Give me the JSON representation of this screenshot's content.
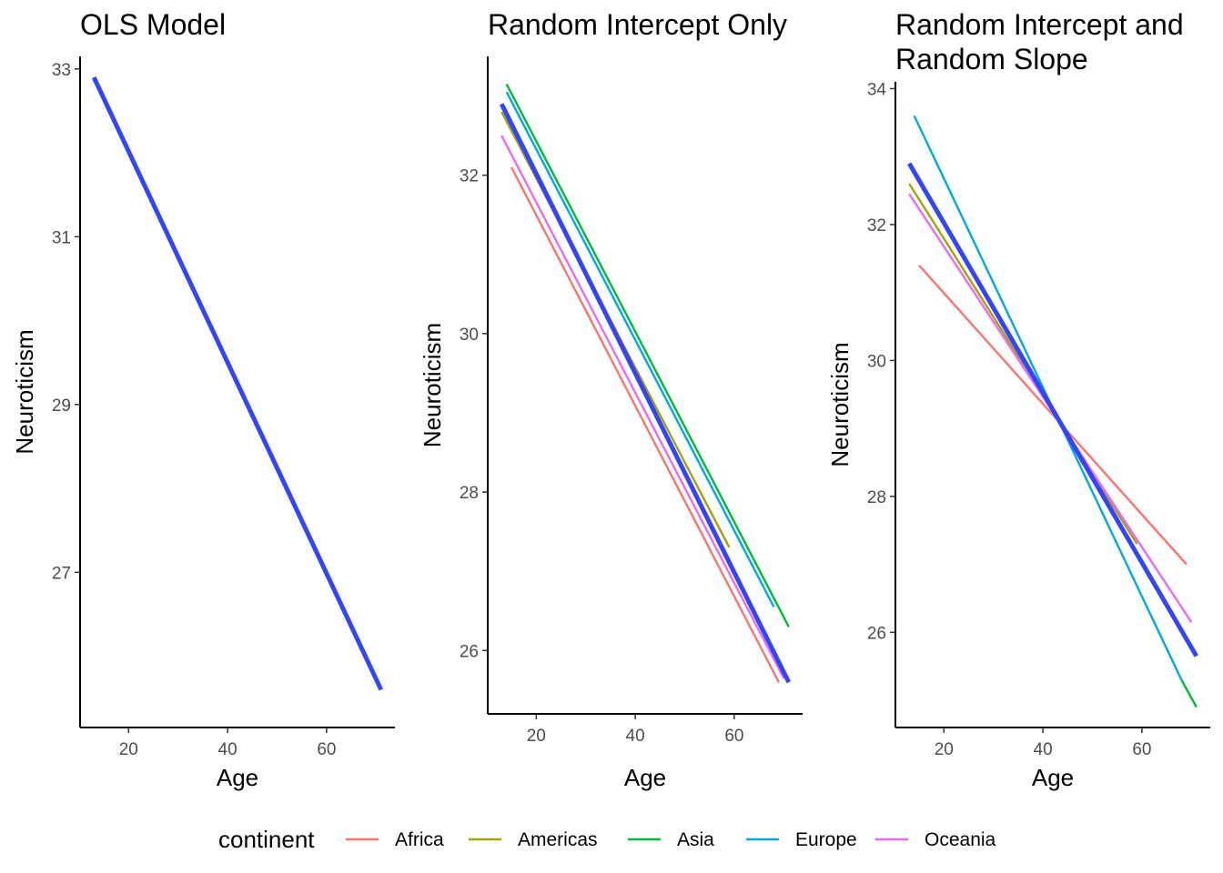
{
  "chart_data": [
    {
      "type": "line",
      "title": "OLS Model",
      "xlabel": "Age",
      "ylabel": "Neuroticism",
      "xlim": [
        10.2,
        73.8
      ],
      "ylim": [
        25.15,
        33.15
      ],
      "xticks": [
        20,
        40,
        60
      ],
      "yticks": [
        27,
        29,
        31,
        33
      ],
      "series": [
        {
          "role": "overall",
          "color": "#3344ff",
          "x": [
            13,
            71
          ],
          "y": [
            32.9,
            25.6
          ]
        }
      ]
    },
    {
      "type": "line",
      "title": "Random Intercept Only",
      "xlabel": "Age",
      "ylabel": "Neuroticism",
      "xlim": [
        10.2,
        73.8
      ],
      "ylim": [
        25.2,
        33.5
      ],
      "xticks": [
        20,
        40,
        60
      ],
      "yticks": [
        26,
        28,
        30,
        32
      ],
      "series": [
        {
          "name": "Asia",
          "color": "#00ba38",
          "x": [
            14,
            71
          ],
          "y": [
            33.15,
            26.3
          ]
        },
        {
          "name": "Europe",
          "color": "#00a9e0",
          "x": [
            14,
            68
          ],
          "y": [
            33.05,
            26.55
          ]
        },
        {
          "name": "Americas",
          "color": "#a3a500",
          "x": [
            13,
            59
          ],
          "y": [
            32.8,
            27.3
          ]
        },
        {
          "name": "Oceania",
          "color": "#e76bf3",
          "x": [
            13,
            70
          ],
          "y": [
            32.5,
            25.65
          ]
        },
        {
          "name": "Africa",
          "color": "#f8766d",
          "x": [
            15,
            69
          ],
          "y": [
            32.1,
            25.6
          ]
        },
        {
          "role": "overall",
          "color": "#3344ff",
          "x": [
            13,
            71
          ],
          "y": [
            32.9,
            25.6
          ]
        }
      ]
    },
    {
      "type": "line",
      "title": "Random Intercept and Random Slope",
      "title_lines": [
        "Random Intercept and",
        "Random Slope"
      ],
      "xlabel": "Age",
      "ylabel": "Neuroticism",
      "xlim": [
        10.2,
        73.8
      ],
      "ylim": [
        24.6,
        34.1
      ],
      "xticks": [
        20,
        40,
        60
      ],
      "yticks": [
        26,
        28,
        30,
        32,
        34
      ],
      "series": [
        {
          "name": "Europe",
          "color": "#00a9e0",
          "x": [
            14,
            68
          ],
          "y": [
            33.6,
            25.3
          ]
        },
        {
          "name": "Asia",
          "color": "#00ba38",
          "x": [
            68,
            71
          ],
          "y": [
            25.3,
            24.9
          ]
        },
        {
          "name": "Americas",
          "color": "#a3a500",
          "x": [
            13,
            59
          ],
          "y": [
            32.6,
            27.3
          ]
        },
        {
          "name": "Oceania",
          "color": "#e76bf3",
          "x": [
            13,
            70
          ],
          "y": [
            32.45,
            26.15
          ]
        },
        {
          "name": "Africa",
          "color": "#f8766d",
          "x": [
            15,
            69
          ],
          "y": [
            31.4,
            27.0
          ]
        },
        {
          "role": "overall",
          "color": "#3344ff",
          "x": [
            13,
            71
          ],
          "y": [
            32.9,
            25.65
          ]
        }
      ]
    }
  ],
  "legend": {
    "title": "continent",
    "position": "bottom",
    "items": [
      {
        "label": "Africa",
        "color": "#f8766d"
      },
      {
        "label": "Americas",
        "color": "#a3a500"
      },
      {
        "label": "Asia",
        "color": "#00ba38"
      },
      {
        "label": "Europe",
        "color": "#00a9e0"
      },
      {
        "label": "Oceania",
        "color": "#e76bf3"
      }
    ]
  }
}
